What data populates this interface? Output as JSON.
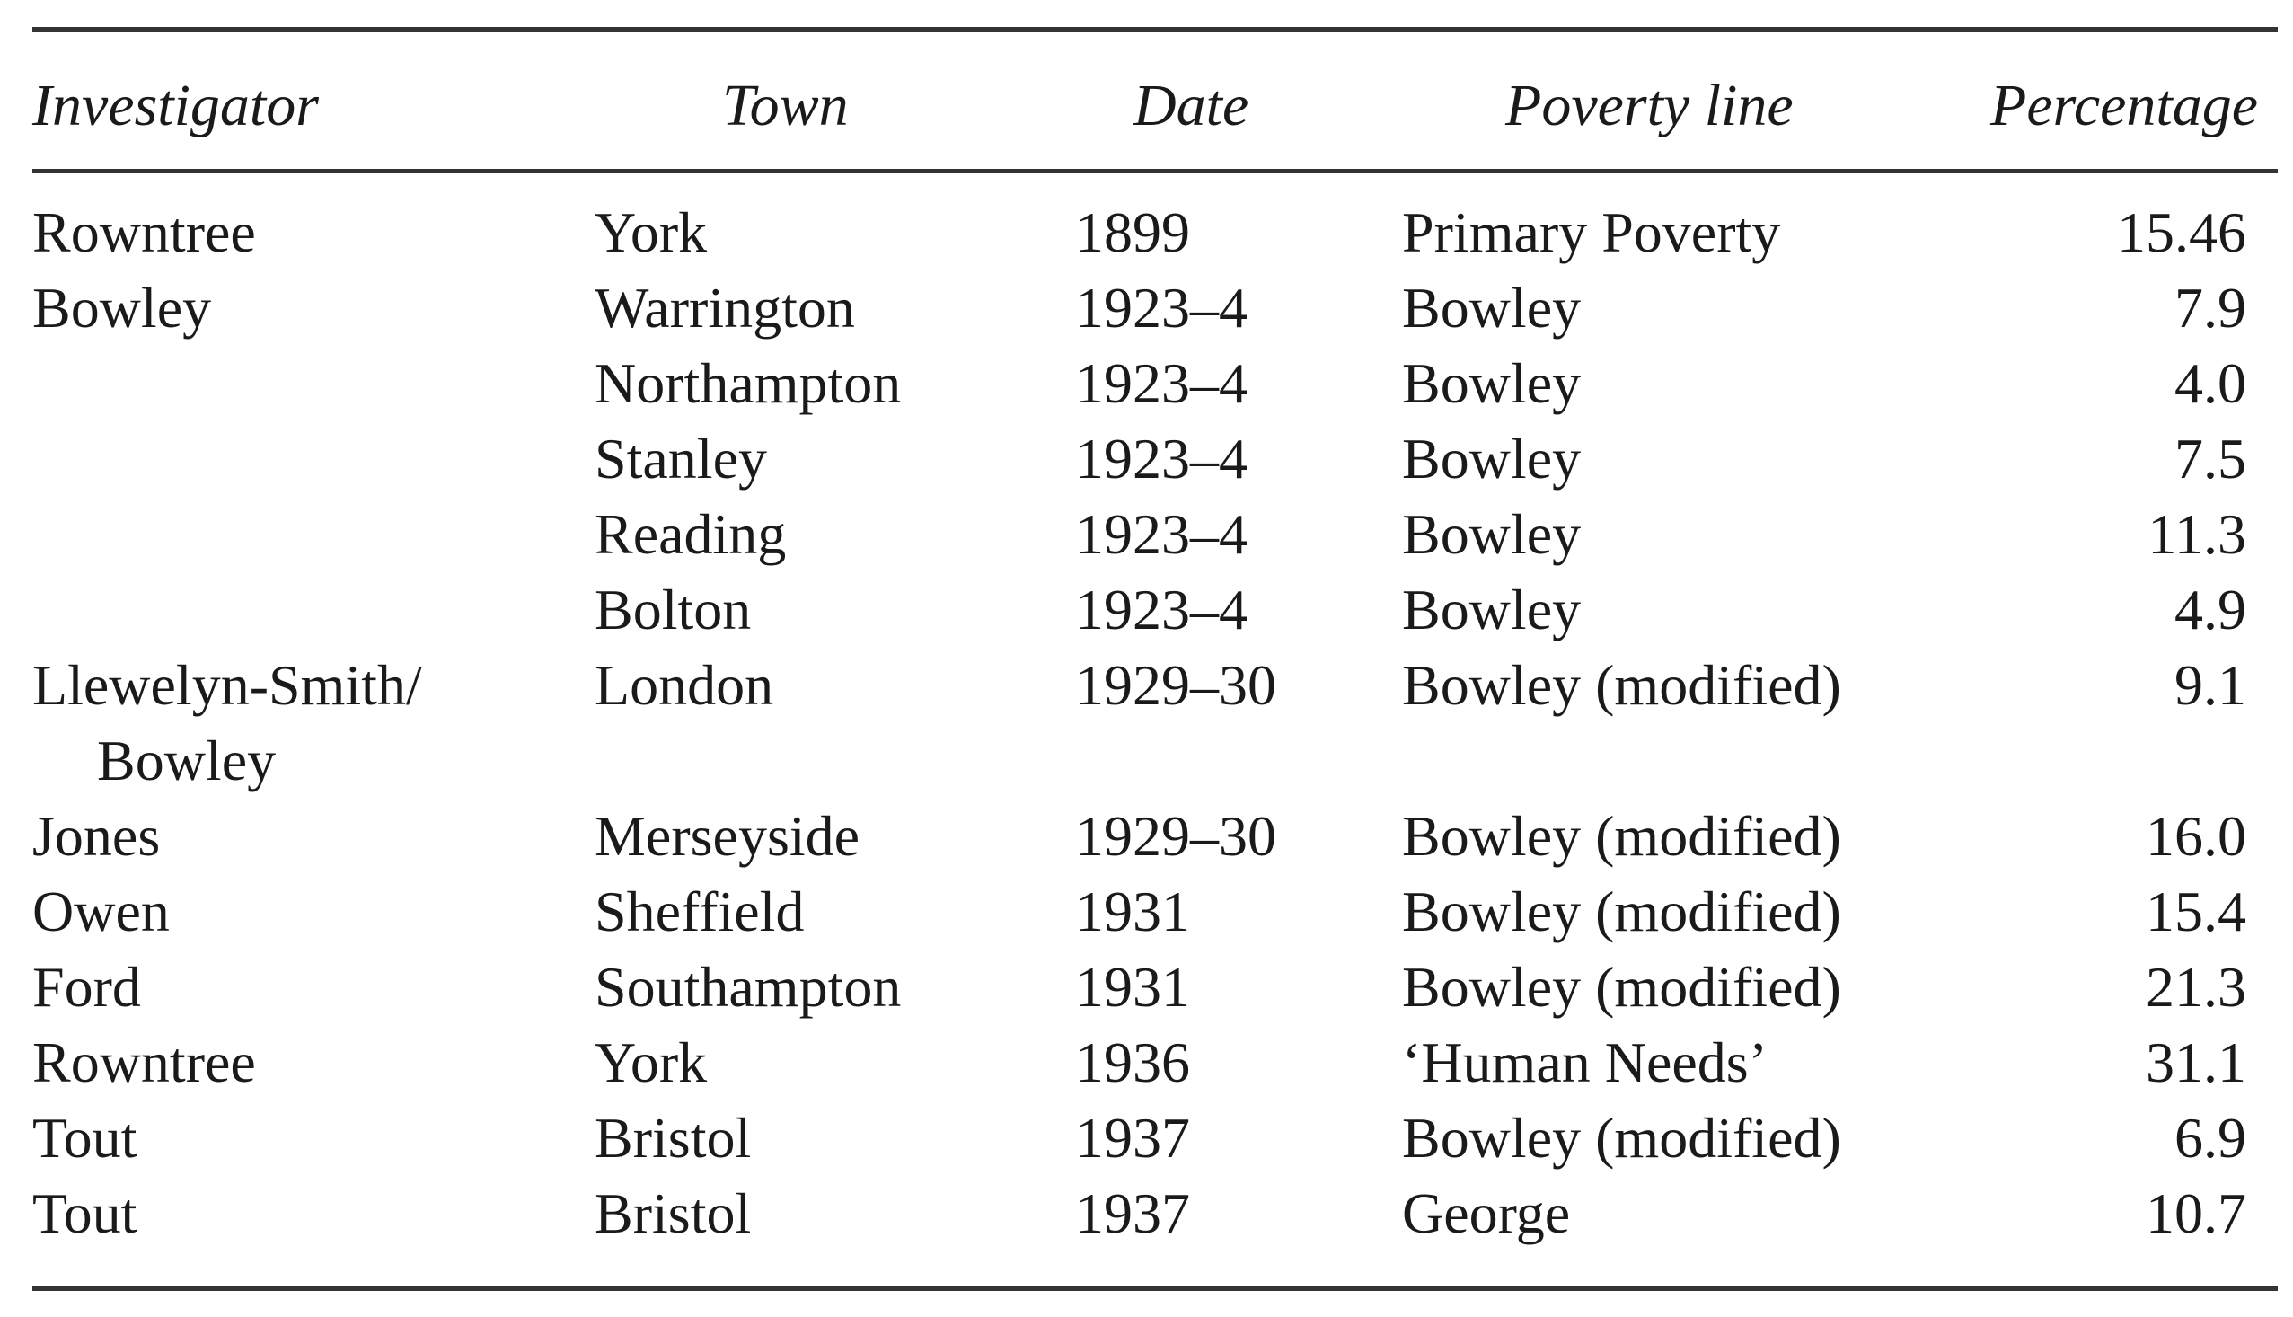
{
  "table": {
    "headers": {
      "investigator": "Investigator",
      "town": "Town",
      "date": "Date",
      "poverty_line": "Poverty line",
      "percentage": "Percentage"
    },
    "rows": [
      {
        "investigator": "Rowntree",
        "town": "York",
        "date": "1899",
        "poverty_line": "Primary Poverty",
        "percentage": "15.46"
      },
      {
        "investigator": "Bowley",
        "town": "Warrington",
        "date": "1923–4",
        "poverty_line": "Bowley",
        "percentage": "7.9"
      },
      {
        "investigator": "",
        "town": "Northampton",
        "date": "1923–4",
        "poverty_line": "Bowley",
        "percentage": "4.0"
      },
      {
        "investigator": "",
        "town": "Stanley",
        "date": "1923–4",
        "poverty_line": "Bowley",
        "percentage": "7.5"
      },
      {
        "investigator": "",
        "town": "Reading",
        "date": "1923–4",
        "poverty_line": "Bowley",
        "percentage": "11.3"
      },
      {
        "investigator": "",
        "town": "Bolton",
        "date": "1923–4",
        "poverty_line": "Bowley",
        "percentage": "4.9"
      },
      {
        "investigator": "Llewelyn-Smith/",
        "investigator_cont": "Bowley",
        "town": "London",
        "date": "1929–30",
        "poverty_line": "Bowley (modified)",
        "percentage": "9.1"
      },
      {
        "investigator": "Jones",
        "town": "Merseyside",
        "date": "1929–30",
        "poverty_line": "Bowley (modified)",
        "percentage": "16.0"
      },
      {
        "investigator": "Owen",
        "town": "Sheffield",
        "date": "1931",
        "poverty_line": "Bowley (modified)",
        "percentage": "15.4"
      },
      {
        "investigator": "Ford",
        "town": "Southampton",
        "date": "1931",
        "poverty_line": "Bowley (modified)",
        "percentage": "21.3"
      },
      {
        "investigator": "Rowntree",
        "town": "York",
        "date": "1936",
        "poverty_line": "‘Human Needs’",
        "percentage": "31.1"
      },
      {
        "investigator": "Tout",
        "town": "Bristol",
        "date": "1937",
        "poverty_line": "Bowley (modified)",
        "percentage": "6.9"
      },
      {
        "investigator": "Tout",
        "town": "Bristol",
        "date": "1937",
        "poverty_line": "George",
        "percentage": "10.7"
      }
    ]
  }
}
